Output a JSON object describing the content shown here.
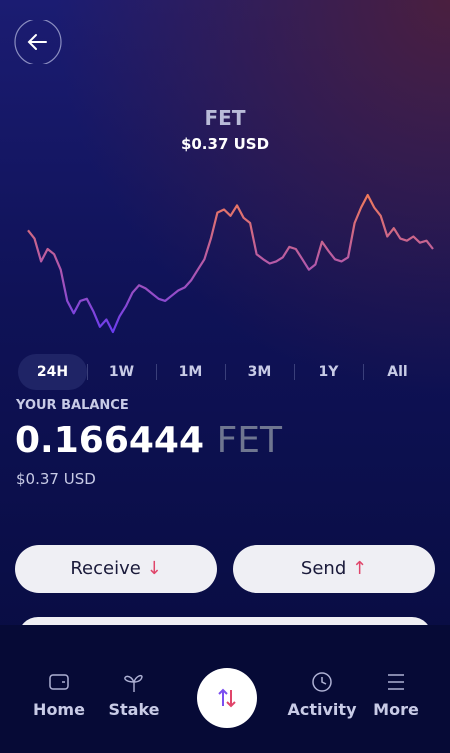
{
  "header": {
    "title": "FET",
    "price": "$0.37 USD"
  },
  "price_chart": {
    "type": "line",
    "values": [
      108,
      100,
      78,
      90,
      85,
      70,
      40,
      28,
      40,
      42,
      30,
      15,
      22,
      10,
      25,
      35,
      48,
      55,
      52,
      47,
      42,
      40,
      45,
      50,
      53,
      60,
      70,
      80,
      100,
      125,
      128,
      122,
      132,
      120,
      115,
      85,
      80,
      76,
      78,
      82,
      92,
      90,
      80,
      70,
      75,
      97,
      88,
      80,
      78,
      82,
      115,
      130,
      142,
      130,
      122,
      102,
      110,
      100,
      98,
      102,
      96,
      98,
      90
    ]
  },
  "time_ranges": [
    "24H",
    "1W",
    "1M",
    "3M",
    "1Y",
    "All"
  ],
  "selected_range": "24H",
  "balance": {
    "label": "YOUR BALANCE",
    "amount": "0.166444",
    "unit": "FET",
    "fiat": "$0.37 USD"
  },
  "actions": [
    "Receive",
    "Send"
  ],
  "nav": [
    "Home",
    "Stake",
    "Activity",
    "More"
  ]
}
